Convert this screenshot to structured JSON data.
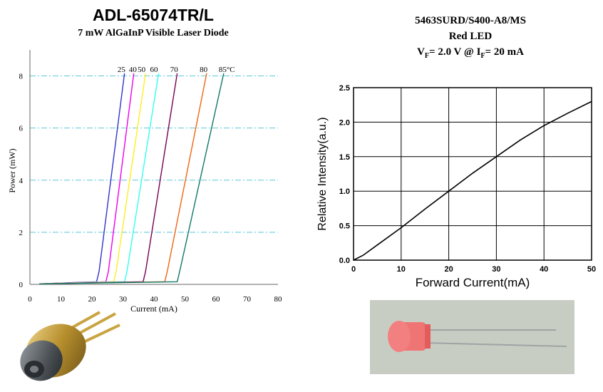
{
  "left": {
    "title": "ADL-65074TR/L",
    "subtitle": "7 mW AlGaInP Visible Laser Diode"
  },
  "right": {
    "title_line1": "5463SURD/S400-A8/MS",
    "title_line2": "Red LED",
    "vf_prefix": "V",
    "vf_sub": "F",
    "vf_mid": "= 2.0 V @ I",
    "if_sub": "F",
    "if_suffix": "= 20 mA"
  },
  "colors": {
    "grid_dash": "#5bc8d8",
    "led_bg": "#c8cdc4",
    "led_red": "#f07070"
  },
  "chart_data": [
    {
      "type": "line",
      "title": "",
      "xlabel": "Current (mA)",
      "ylabel": "Power (mW)",
      "xlim": [
        0,
        80
      ],
      "ylim": [
        0,
        9
      ],
      "xticks": [
        0,
        10,
        20,
        30,
        40,
        50,
        60,
        70,
        80
      ],
      "yticks": [
        0,
        2,
        4,
        6,
        8
      ],
      "grid": "horizontal-dashed",
      "series": [
        {
          "name": "25",
          "color": "#3333cc",
          "label_x": 29.5,
          "threshold": 21.5,
          "x": [
            3,
            21.5,
            22.3,
            30.5
          ],
          "y": [
            0.02,
            0.1,
            0.5,
            8.1
          ]
        },
        {
          "name": "40",
          "color": "#ee00ee",
          "label_x": 33.2,
          "threshold": 24.5,
          "x": [
            3,
            24.5,
            25.3,
            33.5
          ],
          "y": [
            0.02,
            0.1,
            0.5,
            8.1
          ]
        },
        {
          "name": "50",
          "color": "#ffee22",
          "label_x": 36.0,
          "threshold": 27.0,
          "x": [
            3,
            27.0,
            27.8,
            37.3
          ],
          "y": [
            0.02,
            0.1,
            0.5,
            8.1
          ]
        },
        {
          "name": "60",
          "color": "#33ffee",
          "label_x": 40.0,
          "threshold": 30.5,
          "x": [
            3,
            30.5,
            31.3,
            41.5
          ],
          "y": [
            0.02,
            0.1,
            0.5,
            8.1
          ]
        },
        {
          "name": "70",
          "color": "#770055",
          "label_x": 46.5,
          "threshold": 36.5,
          "x": [
            3,
            36.5,
            37.3,
            47.5
          ],
          "y": [
            0.02,
            0.1,
            0.5,
            8.1
          ]
        },
        {
          "name": "80",
          "color": "#ee6611",
          "label_x": 56.0,
          "threshold": 43.5,
          "x": [
            3,
            43.5,
            44.3,
            57.0
          ],
          "y": [
            0.02,
            0.1,
            0.5,
            8.1
          ]
        },
        {
          "name": "85°C",
          "color": "#117766",
          "label_x": 63.5,
          "threshold": 47.5,
          "x": [
            3,
            47.5,
            48.3,
            62.5
          ],
          "y": [
            0.02,
            0.1,
            0.5,
            8.1
          ]
        }
      ]
    },
    {
      "type": "line",
      "title": "",
      "xlabel": "Forward Current(mA)",
      "ylabel": "Relative Intensity(a.u.)",
      "xlim": [
        0,
        50
      ],
      "ylim": [
        0,
        2.5
      ],
      "xticks": [
        0,
        10,
        20,
        30,
        40,
        50
      ],
      "yticks": [
        0.0,
        0.5,
        1.0,
        1.5,
        2.0,
        2.5
      ],
      "ytick_labels": [
        "0.0",
        "0.5",
        "1.0",
        "1.5",
        "2.0",
        "2.5"
      ],
      "grid": true,
      "series": [
        {
          "x": [
            0,
            2,
            5,
            10,
            15,
            20,
            25,
            30,
            35,
            40,
            45,
            50
          ],
          "y": [
            0.0,
            0.07,
            0.22,
            0.47,
            0.74,
            1.0,
            1.26,
            1.5,
            1.74,
            1.95,
            2.13,
            2.3
          ]
        }
      ]
    }
  ]
}
